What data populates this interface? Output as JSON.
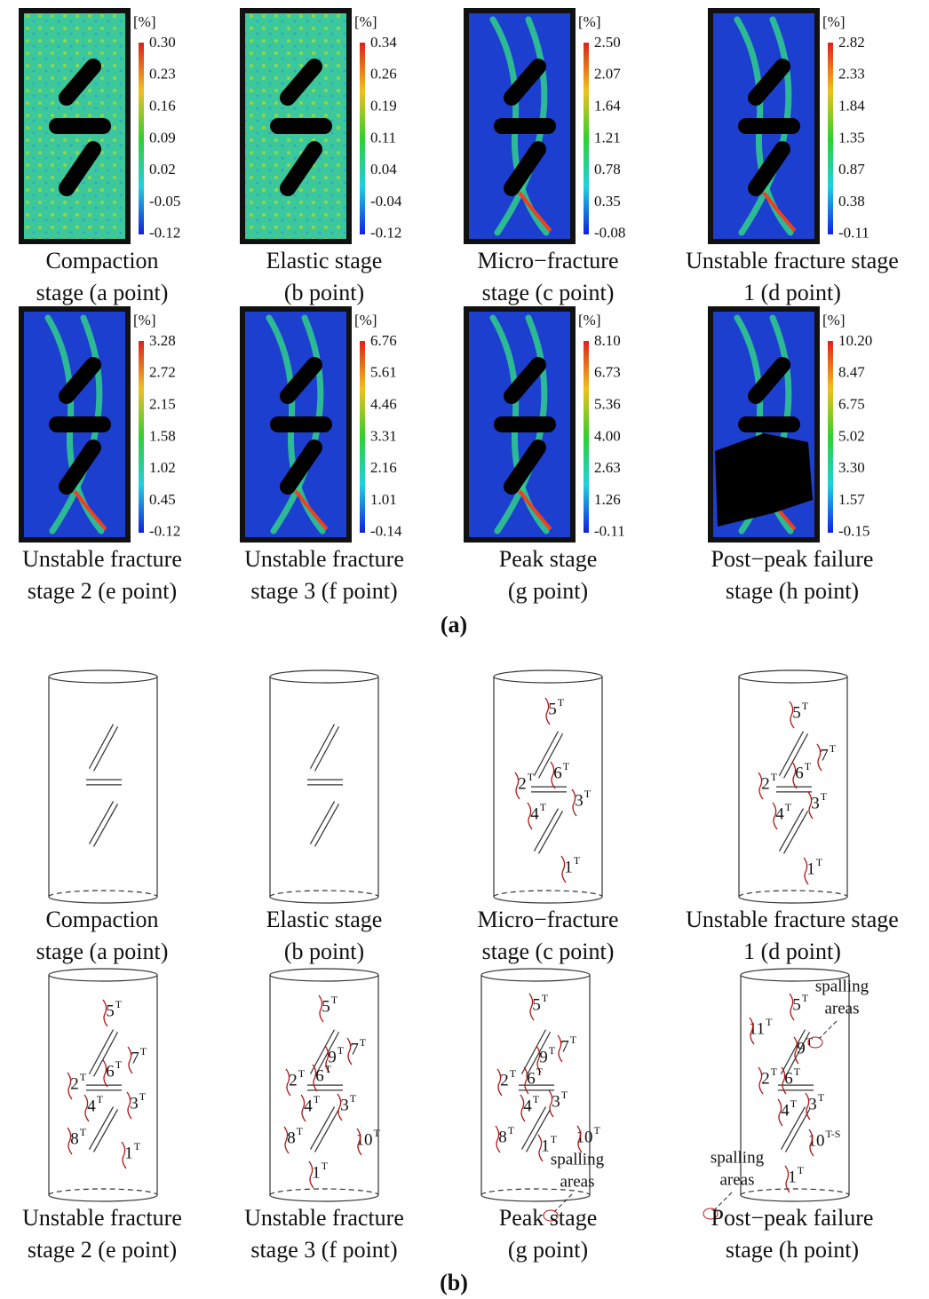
{
  "panel_a": {
    "label": "(a)",
    "panels": [
      {
        "caption": [
          "Compaction",
          "stage (a point)"
        ],
        "unit": "[%]",
        "scale": [
          "0.30",
          "0.23",
          "0.16",
          "0.09",
          "0.02",
          "-0.05",
          "-0.12"
        ]
      },
      {
        "caption": [
          "Elastic stage",
          "(b point)"
        ],
        "unit": "[%]",
        "scale": [
          "0.34",
          "0.26",
          "0.19",
          "0.11",
          "0.04",
          "-0.04",
          "-0.12"
        ]
      },
      {
        "caption": [
          "Micro−fracture",
          "stage (c point)"
        ],
        "unit": "[%]",
        "scale": [
          "2.50",
          "2.07",
          "1.64",
          "1.21",
          "0.78",
          "0.35",
          "-0.08"
        ]
      },
      {
        "caption": [
          "Unstable fracture stage",
          "1 (d point)"
        ],
        "unit": "[%]",
        "scale": [
          "2.82",
          "2.33",
          "1.84",
          "1.35",
          "0.87",
          "0.38",
          "-0.11"
        ]
      },
      {
        "caption": [
          "Unstable fracture",
          "stage 2 (e point)"
        ],
        "unit": "[%]",
        "scale": [
          "3.28",
          "2.72",
          "2.15",
          "1.58",
          "1.02",
          "0.45",
          "-0.12"
        ]
      },
      {
        "caption": [
          "Unstable fracture",
          "stage 3 (f point)"
        ],
        "unit": "[%]",
        "scale": [
          "6.76",
          "5.61",
          "4.46",
          "3.31",
          "2.16",
          "1.01",
          "-0.14"
        ]
      },
      {
        "caption": [
          "Peak stage",
          "(g point)"
        ],
        "unit": "[%]",
        "scale": [
          "8.10",
          "6.73",
          "5.36",
          "4.00",
          "2.63",
          "1.26",
          "-0.11"
        ]
      },
      {
        "caption": [
          "Post−peak failure",
          "stage (h point)"
        ],
        "unit": "[%]",
        "scale": [
          "10.20",
          "8.47",
          "6.75",
          "5.02",
          "3.30",
          "1.57",
          "-0.15"
        ]
      }
    ]
  },
  "panel_b": {
    "label": "(b)",
    "panels": [
      {
        "caption": [
          "Compaction",
          "stage (a point)"
        ],
        "cracks": [],
        "annotations": []
      },
      {
        "caption": [
          "Elastic stage",
          "(b point)"
        ],
        "cracks": [],
        "annotations": []
      },
      {
        "caption": [
          "Micro−fracture",
          "stage (c point)"
        ],
        "cracks": [
          {
            "label": "5",
            "sup": "T"
          },
          {
            "label": "6",
            "sup": "T"
          },
          {
            "label": "2",
            "sup": "T"
          },
          {
            "label": "3",
            "sup": "T"
          },
          {
            "label": "4",
            "sup": "T"
          },
          {
            "label": "1",
            "sup": "T"
          }
        ],
        "annotations": []
      },
      {
        "caption": [
          "Unstable fracture stage",
          "1 (d point)"
        ],
        "cracks": [
          {
            "label": "5",
            "sup": "T"
          },
          {
            "label": "7",
            "sup": "T"
          },
          {
            "label": "6",
            "sup": "T"
          },
          {
            "label": "2",
            "sup": "T"
          },
          {
            "label": "3",
            "sup": "T"
          },
          {
            "label": "4",
            "sup": "T"
          },
          {
            "label": "1",
            "sup": "T"
          }
        ],
        "annotations": []
      },
      {
        "caption": [
          "Unstable fracture",
          "stage 2 (e point)"
        ],
        "cracks": [
          {
            "label": "5",
            "sup": "T"
          },
          {
            "label": "7",
            "sup": "T"
          },
          {
            "label": "6",
            "sup": "T"
          },
          {
            "label": "2",
            "sup": "T"
          },
          {
            "label": "4",
            "sup": "T"
          },
          {
            "label": "3",
            "sup": "T"
          },
          {
            "label": "8",
            "sup": "T"
          },
          {
            "label": "1",
            "sup": "T"
          }
        ],
        "annotations": []
      },
      {
        "caption": [
          "Unstable fracture",
          "stage 3 (f point)"
        ],
        "cracks": [
          {
            "label": "5",
            "sup": "T"
          },
          {
            "label": "9",
            "sup": "T"
          },
          {
            "label": "7",
            "sup": "T"
          },
          {
            "label": "6",
            "sup": "T"
          },
          {
            "label": "2",
            "sup": "T"
          },
          {
            "label": "3",
            "sup": "T"
          },
          {
            "label": "4",
            "sup": "T"
          },
          {
            "label": "8",
            "sup": "T"
          },
          {
            "label": "10",
            "sup": "T"
          },
          {
            "label": "1",
            "sup": "T"
          }
        ],
        "annotations": []
      },
      {
        "caption": [
          "Peak stage",
          "(g point)"
        ],
        "cracks": [
          {
            "label": "5",
            "sup": "T"
          },
          {
            "label": "7",
            "sup": "T"
          },
          {
            "label": "9",
            "sup": "T"
          },
          {
            "label": "6",
            "sup": "T"
          },
          {
            "label": "2",
            "sup": "T"
          },
          {
            "label": "3",
            "sup": "T"
          },
          {
            "label": "4",
            "sup": "T"
          },
          {
            "label": "8",
            "sup": "T"
          },
          {
            "label": "1",
            "sup": "T"
          },
          {
            "label": "10",
            "sup": "T"
          }
        ],
        "annotations": [
          [
            "spalling",
            "areas"
          ]
        ]
      },
      {
        "caption": [
          "Post−peak failure",
          "stage (h point)"
        ],
        "cracks": [
          {
            "label": "11",
            "sup": "T"
          },
          {
            "label": "5",
            "sup": "T"
          },
          {
            "label": "9",
            "sup": "T"
          },
          {
            "label": "6",
            "sup": "T"
          },
          {
            "label": "2",
            "sup": "T"
          },
          {
            "label": "4",
            "sup": "T"
          },
          {
            "label": "3",
            "sup": "T"
          },
          {
            "label": "10",
            "sup": "T-S"
          },
          {
            "label": "1",
            "sup": "T"
          }
        ],
        "annotations": [
          [
            "spalling",
            "areas"
          ],
          [
            "spalling",
            "areas"
          ]
        ]
      }
    ]
  }
}
